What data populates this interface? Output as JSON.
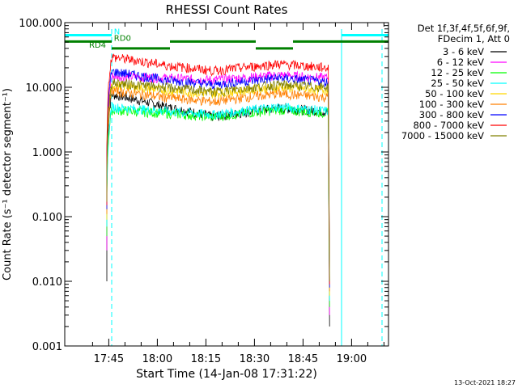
{
  "chart_data": {
    "type": "line",
    "title": "RHESSI Count Rates",
    "xlabel": "Start Time (14-Jan-08 17:31:22)",
    "ylabel": "Count Rate (s⁻¹ detector segment⁻¹)",
    "yscale": "log",
    "ylim": [
      0.001,
      100.0
    ],
    "xlim_minutes_from_start": [
      0,
      100
    ],
    "x_ticks": [
      {
        "label": "17:45",
        "min": 13.6
      },
      {
        "label": "18:00",
        "min": 28.6
      },
      {
        "label": "18:15",
        "min": 43.6
      },
      {
        "label": "18:30",
        "min": 58.6
      },
      {
        "label": "18:45",
        "min": 73.6
      },
      {
        "label": "19:00",
        "min": 88.6
      }
    ],
    "y_ticks": [
      "0.001",
      "0.010",
      "0.100",
      "1.000",
      "10.000",
      "100.000"
    ],
    "legend_header": [
      "Det 1f,3f,4f,5f,6f,9f,",
      "FDecim 1, Att 0"
    ],
    "legend_position": "right",
    "data_start_min": 13.0,
    "data_end_min": 81.5,
    "series": [
      {
        "name": "3 - 6 keV",
        "color": "#000000",
        "levels": [
          8.0,
          5.0,
          3.5,
          4.8,
          4.2
        ]
      },
      {
        "name": "6 - 12 keV",
        "color": "#ff00ff",
        "levels": [
          15.0,
          14.0,
          13.0,
          15.5,
          14.0
        ]
      },
      {
        "name": "12 - 25 keV",
        "color": "#00ff00",
        "levels": [
          4.5,
          4.0,
          3.5,
          4.5,
          4.0
        ]
      },
      {
        "name": "25 - 50 keV",
        "color": "#00ffff",
        "levels": [
          5.0,
          4.3,
          3.8,
          5.0,
          4.3
        ]
      },
      {
        "name": "50 - 100 keV",
        "color": "#ffd700",
        "levels": [
          11.0,
          9.0,
          8.0,
          10.0,
          9.0
        ]
      },
      {
        "name": "100 - 300 keV",
        "color": "#ff7f00",
        "levels": [
          9.0,
          7.0,
          6.0,
          8.0,
          7.0
        ]
      },
      {
        "name": "300 - 800 keV",
        "color": "#0000ff",
        "levels": [
          18.0,
          13.0,
          11.0,
          14.0,
          12.0
        ]
      },
      {
        "name": "800 - 7000 keV",
        "color": "#ff0000",
        "levels": [
          30.0,
          22.0,
          18.0,
          23.0,
          20.0
        ]
      },
      {
        "name": "7000 - 15000 keV",
        "color": "#808000",
        "levels": [
          12.0,
          10.0,
          8.5,
          11.0,
          10.0
        ]
      }
    ],
    "attenuator_bars": [
      {
        "label": "N",
        "color": "#00ffff",
        "segments": [
          [
            0,
            14.5
          ],
          [
            85.5,
            100
          ]
        ],
        "level": 64
      },
      {
        "label": "RD0",
        "color": "#008000",
        "segments": [
          [
            0,
            14.5
          ],
          [
            32.5,
            59.0
          ],
          [
            70.5,
            100
          ]
        ],
        "level": 51
      },
      {
        "label": "RD4",
        "color": "#008000",
        "segments": [
          [
            14.5,
            32.5
          ],
          [
            59.0,
            70.5
          ]
        ],
        "level": 40
      }
    ],
    "event_lines_min": [
      0.0,
      14.5,
      85.5,
      98.0
    ],
    "date_stamp": "13-Oct-2021 18:27"
  }
}
